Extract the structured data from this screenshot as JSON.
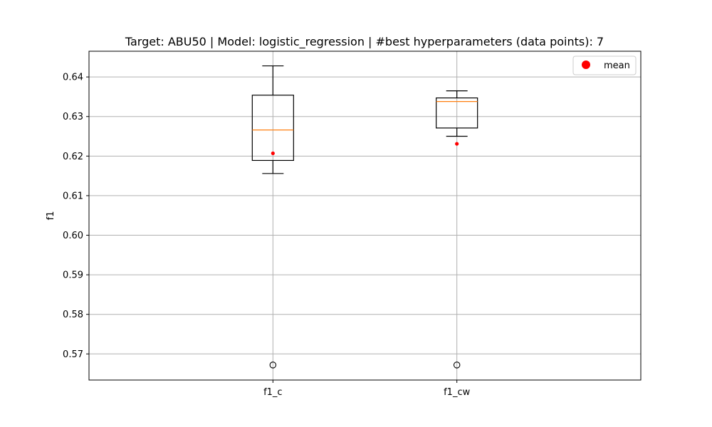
{
  "chart_data": {
    "type": "box",
    "title": "Target: ABU50 | Model: logistic_regression | #best hyperparameters (data points): 7",
    "xlabel": "",
    "ylabel": "f1",
    "ylim": [
      0.5634,
      0.6465
    ],
    "yticks": [
      0.57,
      0.58,
      0.59,
      0.6,
      0.61,
      0.62,
      0.63,
      0.64
    ],
    "ytick_labels": [
      "0.57",
      "0.58",
      "0.59",
      "0.60",
      "0.61",
      "0.62",
      "0.63",
      "0.64"
    ],
    "grid": true,
    "legend": {
      "position": "top-right",
      "entries": [
        "mean"
      ]
    },
    "categories": [
      "f1_c",
      "f1_cw"
    ],
    "boxes": [
      {
        "label": "f1_c",
        "whisker_low": 0.6156,
        "q1": 0.6189,
        "median": 0.6266,
        "q3": 0.6354,
        "whisker_high": 0.6428,
        "mean": 0.6207,
        "outliers": [
          0.5672
        ]
      },
      {
        "label": "f1_cw",
        "whisker_low": 0.625,
        "q1": 0.6271,
        "median": 0.6338,
        "q3": 0.6347,
        "whisker_high": 0.6365,
        "mean": 0.6231,
        "outliers": [
          0.5672
        ]
      }
    ],
    "colors": {
      "box": "#000000",
      "median": "#ff7f0e",
      "mean": "#ff0000",
      "grid": "#b0b0b0"
    }
  }
}
